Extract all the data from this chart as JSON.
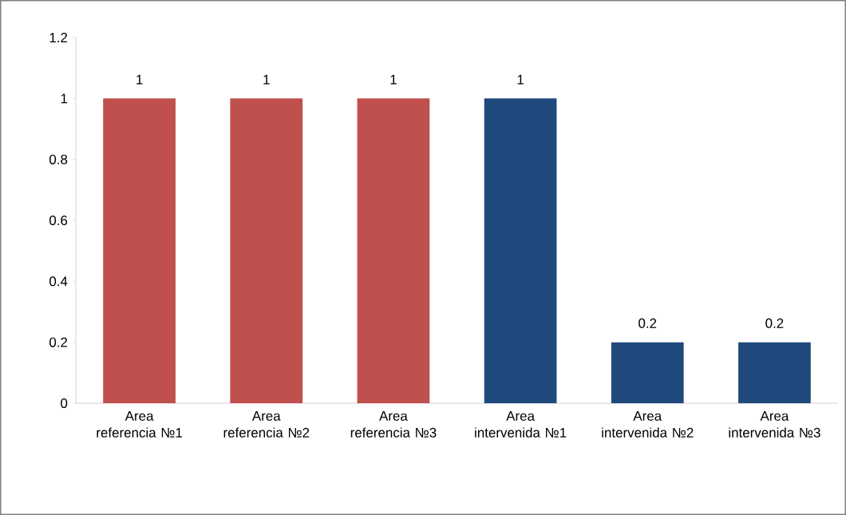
{
  "chart_data": {
    "type": "bar",
    "categories": [
      "Area referencia №1",
      "Area referencia №2",
      "Area referencia №3",
      "Area intervenida №1",
      "Area intervenida №2",
      "Area intervenida №3"
    ],
    "values": [
      1,
      1,
      1,
      1,
      0.2,
      0.2
    ],
    "colors": [
      "#c0504d",
      "#c0504d",
      "#c0504d",
      "#1f497d",
      "#1f497d",
      "#1f497d"
    ],
    "ylim": [
      0,
      1.2
    ],
    "yticks": [
      0,
      0.2,
      0.4,
      0.6,
      0.8,
      1,
      1.2
    ],
    "data_labels": true
  }
}
